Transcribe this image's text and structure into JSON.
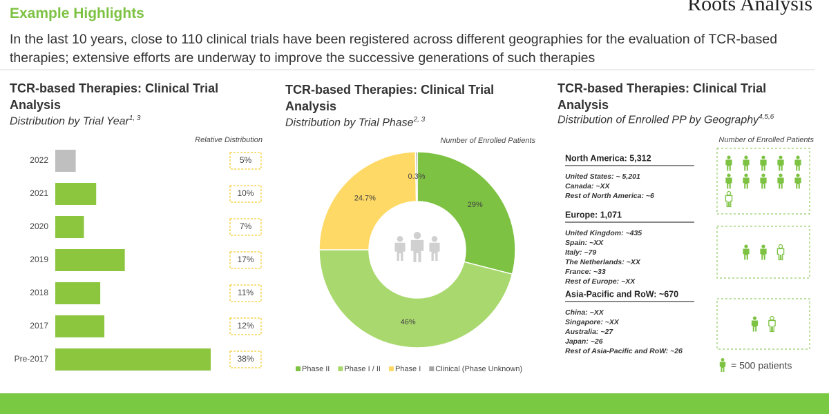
{
  "header": {
    "title": "Example Highlights",
    "brand": "Roots Analysis",
    "summary": "In the last 10 years, close to 110  clinical trials have been registered across different geographies  for the evaluation of TCR-based therapies; extensive efforts are underway to improve the successive generations of such therapies"
  },
  "chart_data": [
    {
      "type": "bar",
      "title": "TCR-based Therapies: Clinical Trial Analysis",
      "subtitle": "Distribution by Trial Year",
      "subtitle_refs": "1, 3",
      "value_axis_label": "Relative Distribution",
      "categories": [
        "2022",
        "2021",
        "2020",
        "2019",
        "2018",
        "2017",
        "Pre-2017"
      ],
      "values": [
        5,
        10,
        7,
        17,
        11,
        12,
        38
      ],
      "value_labels": [
        "5%",
        "10%",
        "7%",
        "17%",
        "11%",
        "12%",
        "38%"
      ],
      "colors": [
        "#bfbfbf",
        "#8cc63f",
        "#8cc63f",
        "#8cc63f",
        "#8cc63f",
        "#8cc63f",
        "#8cc63f"
      ]
    },
    {
      "type": "pie",
      "title": "TCR-based Therapies: Clinical Trial Analysis",
      "subtitle": "Distribution by Trial Phase",
      "subtitle_refs": "2, 3",
      "value_axis_label": "Number of Enrolled Patients",
      "categories": [
        "Phase II",
        "Phase I / II",
        "Phase I",
        "Clinical (Phase Unknown)"
      ],
      "values": [
        29,
        46,
        24.7,
        0.3
      ],
      "value_labels": [
        "29%",
        "46%",
        "24.7%",
        "0.3%"
      ],
      "colors": [
        "#7dc242",
        "#a9d86e",
        "#ffd966",
        "#a6a6a6"
      ]
    },
    {
      "type": "pictogram",
      "title": "TCR-based Therapies: Clinical Trial Analysis",
      "subtitle": "Distribution of Enrolled PP by Geography",
      "subtitle_refs": "4,5,6",
      "value_axis_label": "Number of Enrolled Patients",
      "categories": [
        "North America: 5,312",
        "Europe: 1,071",
        "Asia-Pacific and RoW: ~670"
      ],
      "values": [
        5312,
        1071,
        670
      ],
      "details": [
        [
          "United States: ~ 5,201",
          "Canada: ~XX",
          "Rest of North America: ~6"
        ],
        [
          "United Kingdom: ~435",
          "Spain: ~XX",
          "Italy: ~79",
          "The Netherlands: ~XX",
          "France: ~33",
          "Rest of Europe: ~XX"
        ],
        [
          "China: ~XX",
          "Singapore: ~XX",
          "Australia: ~27",
          "Japan: ~26",
          "Rest of Asia-Pacific and RoW: ~26"
        ]
      ],
      "icon_value": 500,
      "icon_label": "= 500 patients",
      "color": "#7dc242"
    }
  ]
}
